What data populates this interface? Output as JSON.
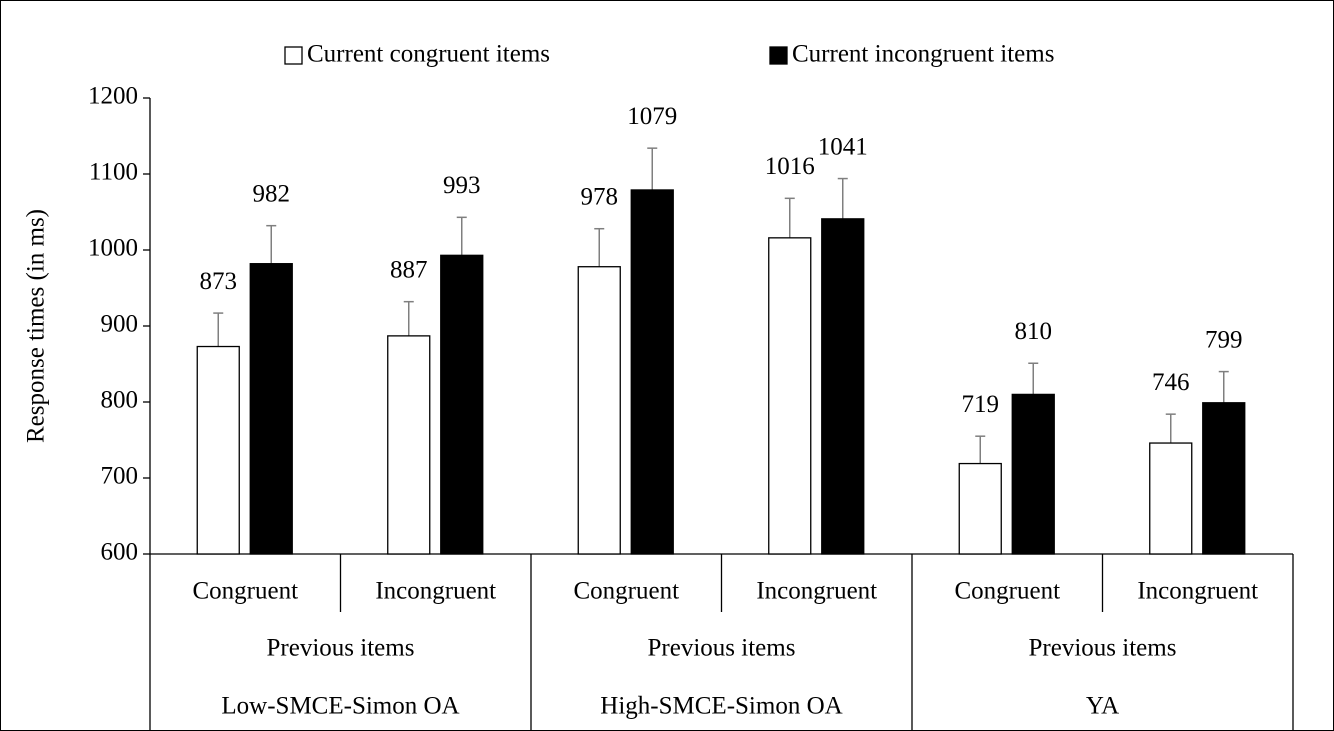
{
  "chart_data": {
    "type": "bar",
    "y_label": "Response times (in ms)",
    "categories": [
      "Congruent",
      "Incongruent",
      "Congruent",
      "Incongruent",
      "Congruent",
      "Incongruent"
    ],
    "category_subgroups": [
      "Previous items",
      "Previous items",
      "Previous items"
    ],
    "category_groups": [
      "Low-SMCE-Simon OA",
      "High-SMCE-Simon OA",
      "YA"
    ],
    "series": [
      {
        "name": "Current congruent items",
        "color": "#ffffff",
        "values": [
          873,
          887,
          978,
          1016,
          719,
          746
        ],
        "errors": [
          44,
          45,
          50,
          52,
          36,
          38
        ]
      },
      {
        "name": "Current incongruent items",
        "color": "#000000",
        "values": [
          982,
          993,
          1079,
          1041,
          810,
          799
        ],
        "errors": [
          50,
          50,
          55,
          53,
          41,
          41
        ]
      }
    ],
    "ylim": [
      600,
      1200
    ],
    "yticks": [
      600,
      700,
      800,
      900,
      1000,
      1100,
      1200
    ],
    "legend": "top"
  }
}
